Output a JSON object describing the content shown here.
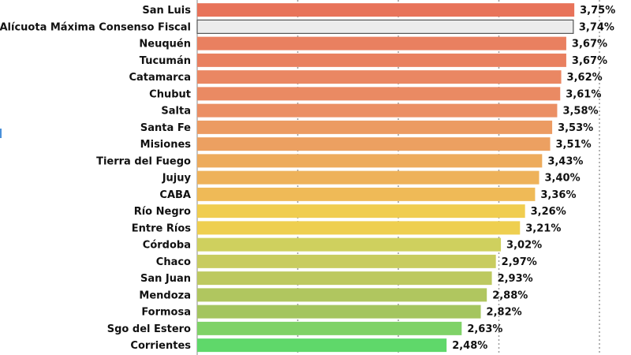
{
  "chart_data": {
    "type": "bar",
    "orientation": "horizontal",
    "title": "",
    "xlabel": "",
    "ylabel": "",
    "xlim": [
      0,
      4.0
    ],
    "grid": true,
    "legend": "none",
    "categories": [
      "San Luis",
      "Alícuota Máxima Consenso Fiscal",
      "Neuquén",
      "Tucumán",
      "Catamarca",
      "Chubut",
      "Salta",
      "Santa Fe",
      "Misiones",
      "Tierra del Fuego",
      "Jujuy",
      "CABA",
      "Río Negro",
      "Entre Ríos",
      "Córdoba",
      "Chaco",
      "San Juan",
      "Mendoza",
      "Formosa",
      "Sgo del Estero",
      "Corrientes"
    ],
    "values": [
      3.75,
      3.74,
      3.67,
      3.67,
      3.62,
      3.61,
      3.58,
      3.53,
      3.51,
      3.43,
      3.4,
      3.36,
      3.26,
      3.21,
      3.02,
      2.97,
      2.93,
      2.88,
      2.82,
      2.63,
      2.48
    ],
    "value_labels": [
      "3,75%",
      "3,74%",
      "3,67%",
      "3,67%",
      "3,62%",
      "3,61%",
      "3,58%",
      "3,53%",
      "3,51%",
      "3,43%",
      "3,40%",
      "3,36%",
      "3,26%",
      "3,21%",
      "3,02%",
      "2,97%",
      "2,93%",
      "2,88%",
      "2,82%",
      "2,63%",
      "2,48%"
    ],
    "colors": [
      "#e8735a",
      "#ececec",
      "#e98060",
      "#e98060",
      "#ea8763",
      "#ea8a63",
      "#eb8f64",
      "#ec9b62",
      "#eca061",
      "#edab5c",
      "#eeb25a",
      "#efba57",
      "#f0cd4f",
      "#eecf50",
      "#cfd05e",
      "#c8cc5f",
      "#bdc960",
      "#b0c65f",
      "#a4c55f",
      "#7fd267",
      "#5fd86a"
    ],
    "highlight_color": "#ececec",
    "grid_values": [
      1,
      2,
      3,
      4
    ]
  }
}
